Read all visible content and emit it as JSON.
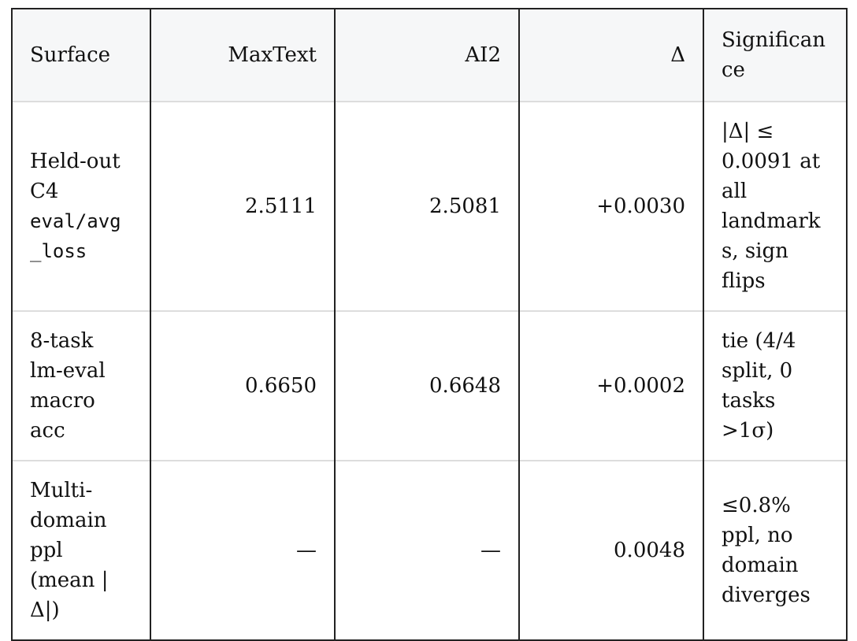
{
  "table": {
    "header": [
      "Surface",
      "MaxText",
      "AI2",
      "Δ",
      "Significance"
    ],
    "rows": [
      [
        {
          "text": "Held-out C4",
          "code": "eval/avg_loss"
        },
        "2.5111",
        "2.5081",
        "+0.0030",
        "|Δ| ≤ 0.0091 at all landmarks, sign flips"
      ],
      [
        {
          "text": "8-task lm-eval macro acc"
        },
        "0.6650",
        "0.6648",
        "+0.0002",
        "tie (4/4 split, 0 tasks >1σ)"
      ],
      [
        {
          "text": "Multi-domain ppl (mean |Δ|)"
        },
        "—",
        "—",
        "0.0048",
        "≤0.8% ppl, no domain diverges"
      ]
    ]
  }
}
